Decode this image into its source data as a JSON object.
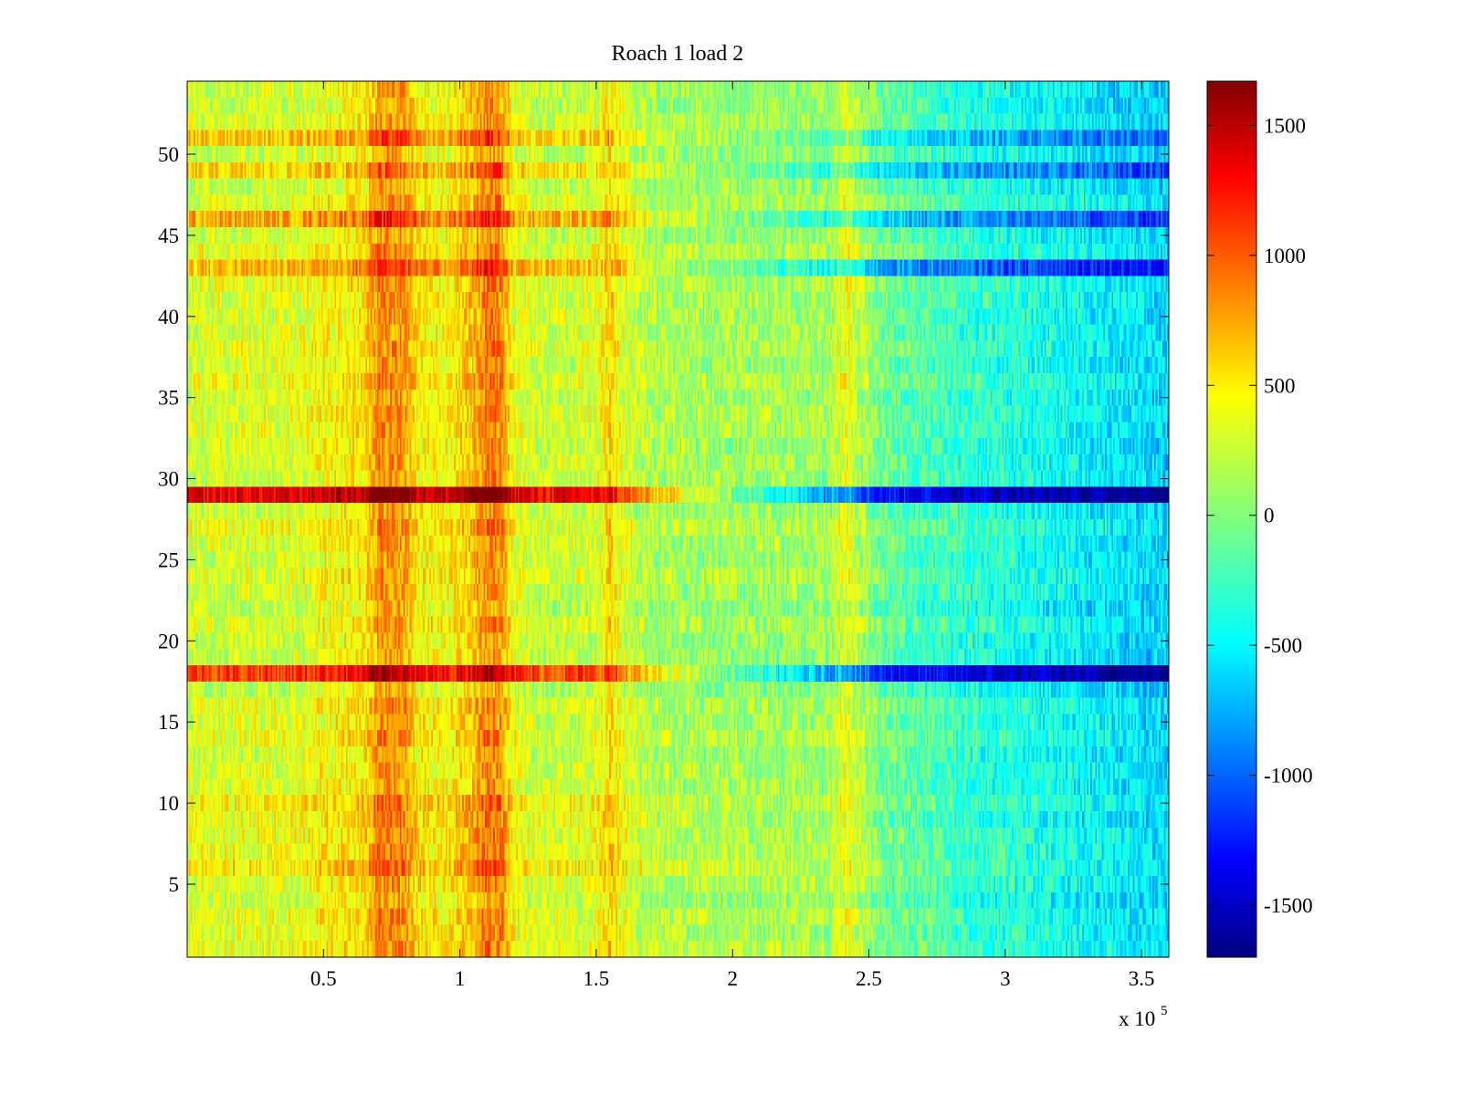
{
  "chart_data": {
    "type": "heatmap",
    "title": "Roach 1 load 2",
    "xlabel": "",
    "ylabel": "",
    "x_multiplier_label": {
      "prefix": "x 10",
      "exponent": "5"
    },
    "xlim": [
      0,
      3.6
    ],
    "ylim": [
      0.5,
      54.5
    ],
    "rows": 54,
    "colormap": "jet",
    "clim": [
      -1700,
      1670
    ],
    "x_ticks": [
      0.5,
      1,
      1.5,
      2,
      2.5,
      3,
      3.5
    ],
    "x_tick_labels": [
      "0.5",
      "1",
      "1.5",
      "2",
      "2.5",
      "3",
      "3.5"
    ],
    "y_ticks": [
      5,
      10,
      15,
      20,
      25,
      30,
      35,
      40,
      45,
      50
    ],
    "y_tick_labels": [
      "5",
      "10",
      "15",
      "20",
      "25",
      "30",
      "35",
      "40",
      "45",
      "50"
    ],
    "colorbar_ticks": [
      1500,
      1000,
      500,
      0,
      -500,
      -1000,
      -1500
    ],
    "colorbar_tick_labels": [
      "1500",
      "1000",
      "500",
      "0",
      "-500",
      "-1000",
      "-1500"
    ],
    "column_profile": {
      "x": [
        0,
        0.4,
        0.5,
        0.65,
        0.7,
        0.8,
        0.85,
        0.95,
        1.05,
        1.1,
        1.15,
        1.2,
        1.3,
        1.5,
        1.55,
        1.6,
        1.7,
        2.0,
        2.35,
        2.42,
        2.47,
        2.55,
        2.8,
        3.2,
        3.6
      ],
      "value": [
        250,
        280,
        380,
        450,
        780,
        720,
        430,
        380,
        600,
        820,
        760,
        320,
        200,
        260,
        520,
        280,
        120,
        80,
        80,
        340,
        130,
        -80,
        -250,
        -420,
        -600
      ]
    },
    "row_offsets": [
      {
        "row": 6,
        "offset": 180
      },
      {
        "row": 9,
        "offset": 150
      },
      {
        "row": 10,
        "offset": 120
      },
      {
        "row": 18,
        "offset": 850,
        "tail_offset": -1050
      },
      {
        "row": 29,
        "offset": 1000,
        "tail_offset": -1200
      },
      {
        "row": 43,
        "offset": 420,
        "tail_offset": -600
      },
      {
        "row": 46,
        "offset": 380,
        "tail_offset": -550
      },
      {
        "row": 49,
        "offset": 250,
        "tail_offset": -450
      },
      {
        "row": 51,
        "offset": 260,
        "tail_offset": -420
      }
    ]
  }
}
